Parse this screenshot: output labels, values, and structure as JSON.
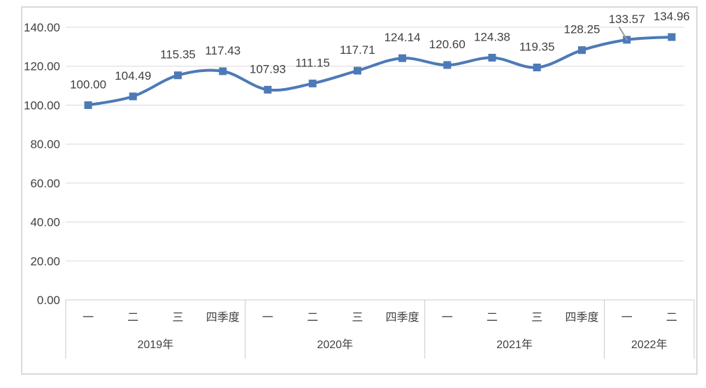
{
  "chart_data": {
    "type": "line",
    "title": "",
    "xlabel": "",
    "ylabel": "",
    "legend": "none",
    "grid": true,
    "line_smooth": true,
    "marker": "square",
    "ylim": [
      0,
      140
    ],
    "categories": [
      "一",
      "二",
      "三",
      "四季度",
      "一",
      "二",
      "三",
      "四季度",
      "一",
      "二",
      "三",
      "四季度",
      "一",
      "二"
    ],
    "category_groups": [
      {
        "label": "2019年",
        "span": 4
      },
      {
        "label": "2020年",
        "span": 4
      },
      {
        "label": "2021年",
        "span": 4
      },
      {
        "label": "2022年",
        "span": 2
      }
    ],
    "series": [
      {
        "name": "",
        "values": [
          100.0,
          104.49,
          115.35,
          117.43,
          107.93,
          111.15,
          117.71,
          124.14,
          120.6,
          124.38,
          119.35,
          128.25,
          133.57,
          134.96
        ],
        "data_labels": [
          "100.00",
          "104.49",
          "115.35",
          "117.43",
          "107.93",
          "111.15",
          "117.71",
          "124.14",
          "120.60",
          "124.38",
          "119.35",
          "128.25",
          "133.57",
          "134.96"
        ]
      }
    ],
    "y_ticks": [
      {
        "value": 0,
        "label": "0.00"
      },
      {
        "value": 20,
        "label": "20.00"
      },
      {
        "value": 40,
        "label": "40.00"
      },
      {
        "value": 60,
        "label": "60.00"
      },
      {
        "value": 80,
        "label": "80.00"
      },
      {
        "value": 100,
        "label": "100.00"
      },
      {
        "value": 120,
        "label": "120.00"
      },
      {
        "value": 140,
        "label": "140.00"
      }
    ],
    "colors": {
      "line": "#4d7ab7",
      "marker": "#4d7ab7",
      "gridline": "#d9d9d9",
      "axis": "#c9c9c9",
      "text": "#404040",
      "frame_border": "#d9d9d9",
      "cursor": "#9b9b9b"
    }
  }
}
